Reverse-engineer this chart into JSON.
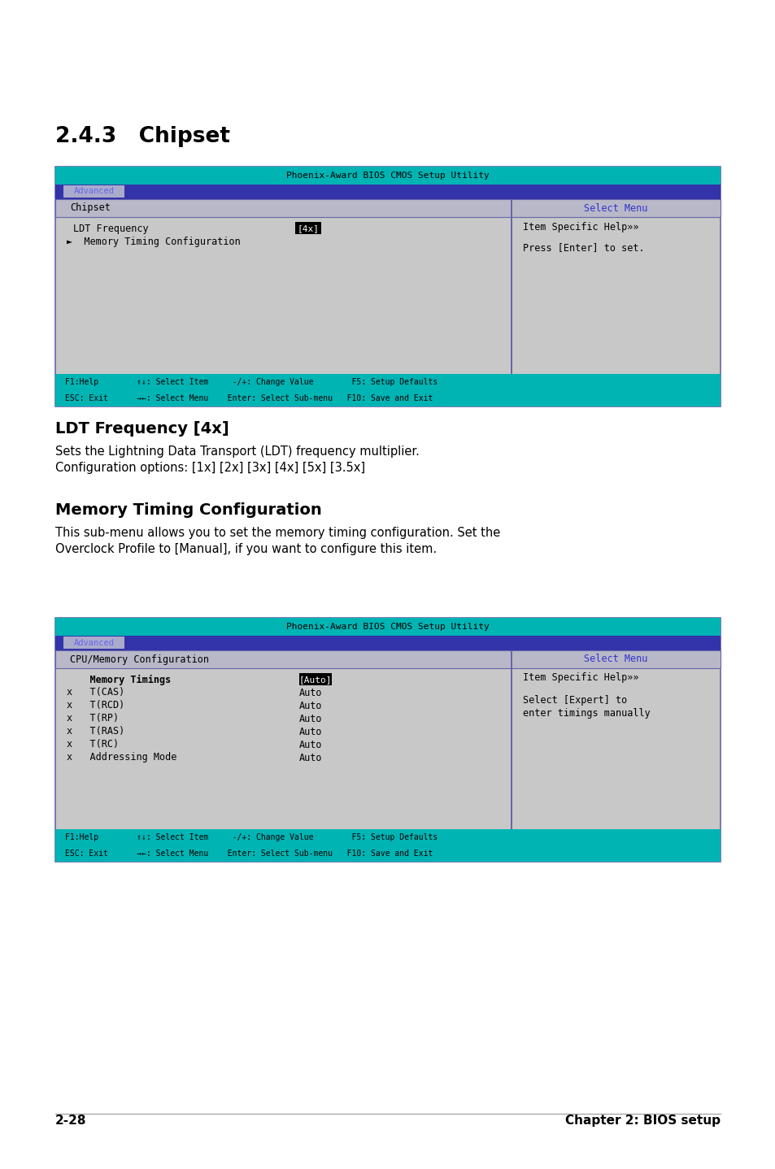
{
  "page_bg": "#ffffff",
  "title": "2.4.3   Chipset",
  "bios_title_text": "Phoenix-Award BIOS CMOS Setup Utility",
  "tab_text": "Advanced",
  "chipset_header_left": "Chipset",
  "chipset_header_right": "Select Menu",
  "row1_label": "LDT Frequency",
  "row1_value": "[4x]",
  "row2_label": "►  Memory Timing Configuration",
  "help_line1": "Item Specific Help»»",
  "help_line2": "Press [Enter] to set.",
  "footer_line1": "F1:Help        ↑↓: Select Item     -/+: Change Value        F5: Setup Defaults",
  "footer_line2": "ESC: Exit      →←: Select Menu    Enter: Select Sub-menu   F10: Save and Exit",
  "section2_title": "LDT Frequency [4x]",
  "section2_body1": "Sets the Lightning Data Transport (LDT) frequency multiplier.",
  "section2_body2": "Configuration options: [1x] [2x] [3x] [4x] [5x] [3.5x]",
  "section3_title": "Memory Timing Configuration",
  "section3_body1": "This sub-menu allows you to set the memory timing configuration. Set the",
  "section3_body2": "Overclock Profile to [Manual], if you want to configure this item.",
  "bios2_title_text": "Phoenix-Award BIOS CMOS Setup Utility",
  "bios2_tab_text": "Advanced",
  "cpu_header_left": "CPU/Memory Configuration",
  "cpu_header_right": "Select Menu",
  "cpu_rows": [
    {
      "prefix": "    ",
      "label": "Memory Timings",
      "value": "[Auto]",
      "highlight": true,
      "bold": true
    },
    {
      "prefix": "x   ",
      "label": "T(CAS)",
      "value": "Auto",
      "highlight": false,
      "bold": false
    },
    {
      "prefix": "x   ",
      "label": "T(RCD)",
      "value": "Auto",
      "highlight": false,
      "bold": false
    },
    {
      "prefix": "x   ",
      "label": "T(RP)",
      "value": "Auto",
      "highlight": false,
      "bold": false
    },
    {
      "prefix": "x   ",
      "label": "T(RAS)",
      "value": "Auto",
      "highlight": false,
      "bold": false
    },
    {
      "prefix": "x   ",
      "label": "T(RC)",
      "value": "Auto",
      "highlight": false,
      "bold": false
    },
    {
      "prefix": "x   ",
      "label": "Addressing Mode",
      "value": "Auto",
      "highlight": false,
      "bold": false
    }
  ],
  "help2_line1": "Item Specific Help»»",
  "help2_line2": "Select [Expert] to",
  "help2_line3": "enter timings manually",
  "footer2_line1": "F1:Help        ↑↓: Select Item     -/+: Change Value        F5: Setup Defaults",
  "footer2_line2": "ESC: Exit      →←: Select Menu    Enter: Select Sub-menu   F10: Save and Exit",
  "page_number": "2-28",
  "page_chapter": "Chapter 2: BIOS setup",
  "teal_color": "#00b4b4",
  "dark_blue": "#3333aa",
  "tab_btn_color": "#aaaacc",
  "tab_text_color": "#6666ee",
  "gray_bg": "#c8c8c8",
  "header_bg": "#b8b8c8",
  "border_color": "#6666aa",
  "divider_color": "#6666aa",
  "select_menu_color": "#3333cc"
}
